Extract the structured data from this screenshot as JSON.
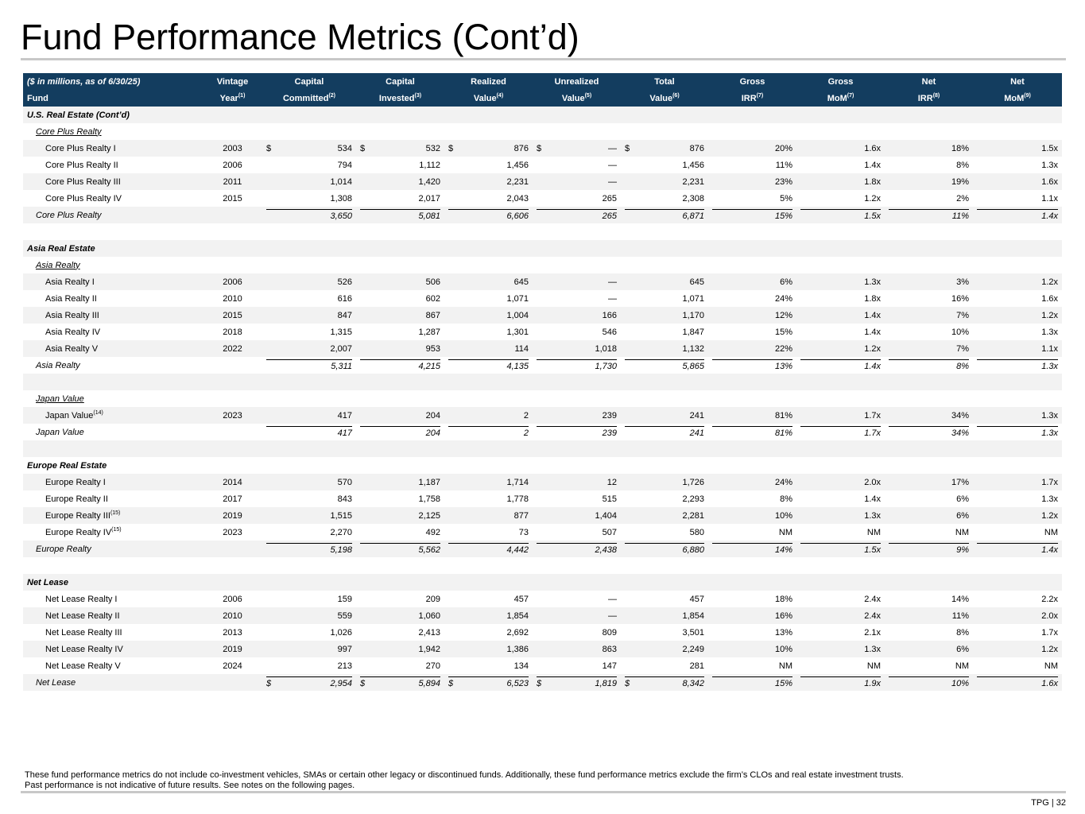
{
  "header": {
    "title": "Fund Performance Metrics (Cont’d)"
  },
  "table": {
    "columns": [
      {
        "top": "($ in millions, as of 6/30/25)",
        "bottom": "Fund"
      },
      {
        "top": "Vintage",
        "bottom": "Year",
        "note": "(1)"
      },
      {
        "top": "Capital",
        "bottom": "Committed",
        "note": "(2)"
      },
      {
        "top": "Capital",
        "bottom": "Invested",
        "note": "(3)"
      },
      {
        "top": "Realized",
        "bottom": "Value",
        "note": "(4)"
      },
      {
        "top": "Unrealized",
        "bottom": "Value",
        "note": "(5)"
      },
      {
        "top": "Total",
        "bottom": "Value",
        "note": "(6)"
      },
      {
        "top": "Gross",
        "bottom": "IRR",
        "note": "(7)"
      },
      {
        "top": "Gross",
        "bottom": "MoM",
        "note": "(7)"
      },
      {
        "top": "Net",
        "bottom": "IRR",
        "note": "(8)"
      },
      {
        "top": "Net",
        "bottom": "MoM",
        "note": "(9)"
      }
    ],
    "sections": [
      {
        "title": "U.S. Real Estate (Cont’d)",
        "groups": [
          {
            "title": "Core Plus Realty",
            "funds": [
              {
                "name": "Core Plus Realty I",
                "year": "2003",
                "currency": "$",
                "values": [
                  "534",
                  "532",
                  "876",
                  "—",
                  "876",
                  "20%",
                  "1.6x",
                  "18%",
                  "1.5x"
                ]
              },
              {
                "name": "Core Plus Realty II",
                "year": "2006",
                "values": [
                  "794",
                  "1,112",
                  "1,456",
                  "—",
                  "1,456",
                  "11%",
                  "1.4x",
                  "8%",
                  "1.3x"
                ]
              },
              {
                "name": "Core Plus Realty III",
                "year": "2011",
                "values": [
                  "1,014",
                  "1,420",
                  "2,231",
                  "—",
                  "2,231",
                  "23%",
                  "1.8x",
                  "19%",
                  "1.6x"
                ]
              },
              {
                "name": "Core Plus Realty IV",
                "year": "2015",
                "values": [
                  "1,308",
                  "2,017",
                  "2,043",
                  "265",
                  "2,308",
                  "5%",
                  "1.2x",
                  "2%",
                  "1.1x"
                ]
              }
            ],
            "total": {
              "name": "Core Plus Realty",
              "values": [
                "3,650",
                "5,081",
                "6,606",
                "265",
                "6,871",
                "15%",
                "1.5x",
                "11%",
                "1.4x"
              ]
            }
          }
        ]
      },
      {
        "title": "Asia Real Estate",
        "groups": [
          {
            "title": "Asia Realty",
            "funds": [
              {
                "name": "Asia Realty I",
                "year": "2006",
                "values": [
                  "526",
                  "506",
                  "645",
                  "—",
                  "645",
                  "6%",
                  "1.3x",
                  "3%",
                  "1.2x"
                ]
              },
              {
                "name": "Asia Realty II",
                "year": "2010",
                "values": [
                  "616",
                  "602",
                  "1,071",
                  "—",
                  "1,071",
                  "24%",
                  "1.8x",
                  "16%",
                  "1.6x"
                ]
              },
              {
                "name": "Asia Realty III",
                "year": "2015",
                "values": [
                  "847",
                  "867",
                  "1,004",
                  "166",
                  "1,170",
                  "12%",
                  "1.4x",
                  "7%",
                  "1.2x"
                ]
              },
              {
                "name": "Asia Realty IV",
                "year": "2018",
                "values": [
                  "1,315",
                  "1,287",
                  "1,301",
                  "546",
                  "1,847",
                  "15%",
                  "1.4x",
                  "10%",
                  "1.3x"
                ]
              },
              {
                "name": "Asia Realty V",
                "year": "2022",
                "values": [
                  "2,007",
                  "953",
                  "114",
                  "1,018",
                  "1,132",
                  "22%",
                  "1.2x",
                  "7%",
                  "1.1x"
                ]
              }
            ],
            "total": {
              "name": "Asia Realty",
              "values": [
                "5,311",
                "4,215",
                "4,135",
                "1,730",
                "5,865",
                "13%",
                "1.4x",
                "8%",
                "1.3x"
              ]
            }
          },
          {
            "title": "Japan Value",
            "funds": [
              {
                "name": "Japan Value",
                "note": "(14)",
                "year": "2023",
                "values": [
                  "417",
                  "204",
                  "2",
                  "239",
                  "241",
                  "81%",
                  "1.7x",
                  "34%",
                  "1.3x"
                ]
              }
            ],
            "total": {
              "name": "Japan Value",
              "values": [
                "417",
                "204",
                "2",
                "239",
                "241",
                "81%",
                "1.7x",
                "34%",
                "1.3x"
              ]
            }
          }
        ]
      },
      {
        "title": "Europe Real Estate",
        "groups": [
          {
            "funds": [
              {
                "name": "Europe Realty I",
                "year": "2014",
                "values": [
                  "570",
                  "1,187",
                  "1,714",
                  "12",
                  "1,726",
                  "24%",
                  "2.0x",
                  "17%",
                  "1.7x"
                ]
              },
              {
                "name": "Europe Realty II",
                "year": "2017",
                "values": [
                  "843",
                  "1,758",
                  "1,778",
                  "515",
                  "2,293",
                  "8%",
                  "1.4x",
                  "6%",
                  "1.3x"
                ]
              },
              {
                "name": "Europe Realty III",
                "note": "(15)",
                "year": "2019",
                "values": [
                  "1,515",
                  "2,125",
                  "877",
                  "1,404",
                  "2,281",
                  "10%",
                  "1.3x",
                  "6%",
                  "1.2x"
                ]
              },
              {
                "name": "Europe Realty IV",
                "note": "(15)",
                "year": "2023",
                "values": [
                  "2,270",
                  "492",
                  "73",
                  "507",
                  "580",
                  "NM",
                  "NM",
                  "NM",
                  "NM"
                ]
              }
            ],
            "total": {
              "name": "Europe Realty",
              "values": [
                "5,198",
                "5,562",
                "4,442",
                "2,438",
                "6,880",
                "14%",
                "1.5x",
                "9%",
                "1.4x"
              ]
            }
          }
        ]
      },
      {
        "title": "Net Lease",
        "groups": [
          {
            "funds": [
              {
                "name": "Net Lease Realty I",
                "year": "2006",
                "values": [
                  "159",
                  "209",
                  "457",
                  "—",
                  "457",
                  "18%",
                  "2.4x",
                  "14%",
                  "2.2x"
                ]
              },
              {
                "name": "Net Lease Realty II",
                "year": "2010",
                "values": [
                  "559",
                  "1,060",
                  "1,854",
                  "—",
                  "1,854",
                  "16%",
                  "2.4x",
                  "11%",
                  "2.0x"
                ]
              },
              {
                "name": "Net Lease Realty III",
                "year": "2013",
                "values": [
                  "1,026",
                  "2,413",
                  "2,692",
                  "809",
                  "3,501",
                  "13%",
                  "2.1x",
                  "8%",
                  "1.7x"
                ]
              },
              {
                "name": "Net Lease Realty IV",
                "year": "2019",
                "values": [
                  "997",
                  "1,942",
                  "1,386",
                  "863",
                  "2,249",
                  "10%",
                  "1.3x",
                  "6%",
                  "1.2x"
                ]
              },
              {
                "name": "Net Lease Realty V",
                "year": "2024",
                "values": [
                  "213",
                  "270",
                  "134",
                  "147",
                  "281",
                  "NM",
                  "NM",
                  "NM",
                  "NM"
                ]
              }
            ],
            "total": {
              "name": "Net Lease",
              "currency": "$",
              "values": [
                "2,954",
                "5,894",
                "6,523",
                "1,819",
                "8,342",
                "15%",
                "1.9x",
                "10%",
                "1.6x"
              ]
            }
          }
        ]
      }
    ]
  },
  "footer": {
    "notes": [
      "These fund performance metrics do not include co-investment vehicles, SMAs or certain other legacy or discontinued funds. Additionally, these fund performance metrics exclude the firm’s CLOs and real estate investment trusts.",
      "Past performance is not indicative of future results. See notes on the following pages."
    ],
    "page": "TPG | 32"
  }
}
